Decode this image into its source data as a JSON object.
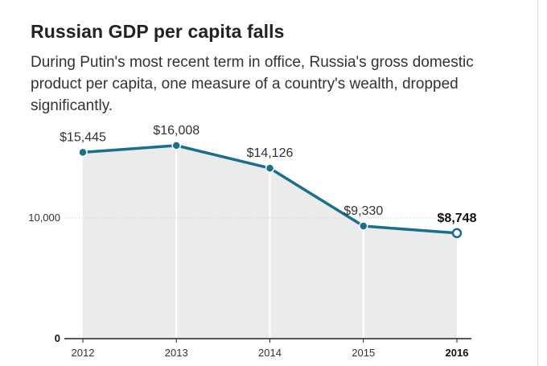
{
  "chart_data": {
    "type": "area",
    "title": "Russian GDP per capita falls",
    "subtitle": "During Putin's most recent term in office, Russia's gross domestic product per capita, one measure of a country's wealth, dropped significantly.",
    "categories": [
      "2012",
      "2013",
      "2014",
      "2015",
      "2016"
    ],
    "values": [
      15445,
      16008,
      14126,
      9330,
      8748
    ],
    "data_labels": [
      "$15,445",
      "$16,008",
      "$14,126",
      "$9,330",
      "$8,748"
    ],
    "yticks": [
      {
        "value": 0,
        "label": "0"
      },
      {
        "value": 10000,
        "label": "10,000"
      }
    ],
    "ylim": [
      0,
      17000
    ],
    "highlight_index": 4,
    "xlabel": "",
    "ylabel": "",
    "grid": false
  },
  "colors": {
    "line": "#1a6e8e",
    "area": "#ebebeb",
    "divider": "#ffffff",
    "axis": "#222222",
    "gridline": "#cccccc"
  }
}
